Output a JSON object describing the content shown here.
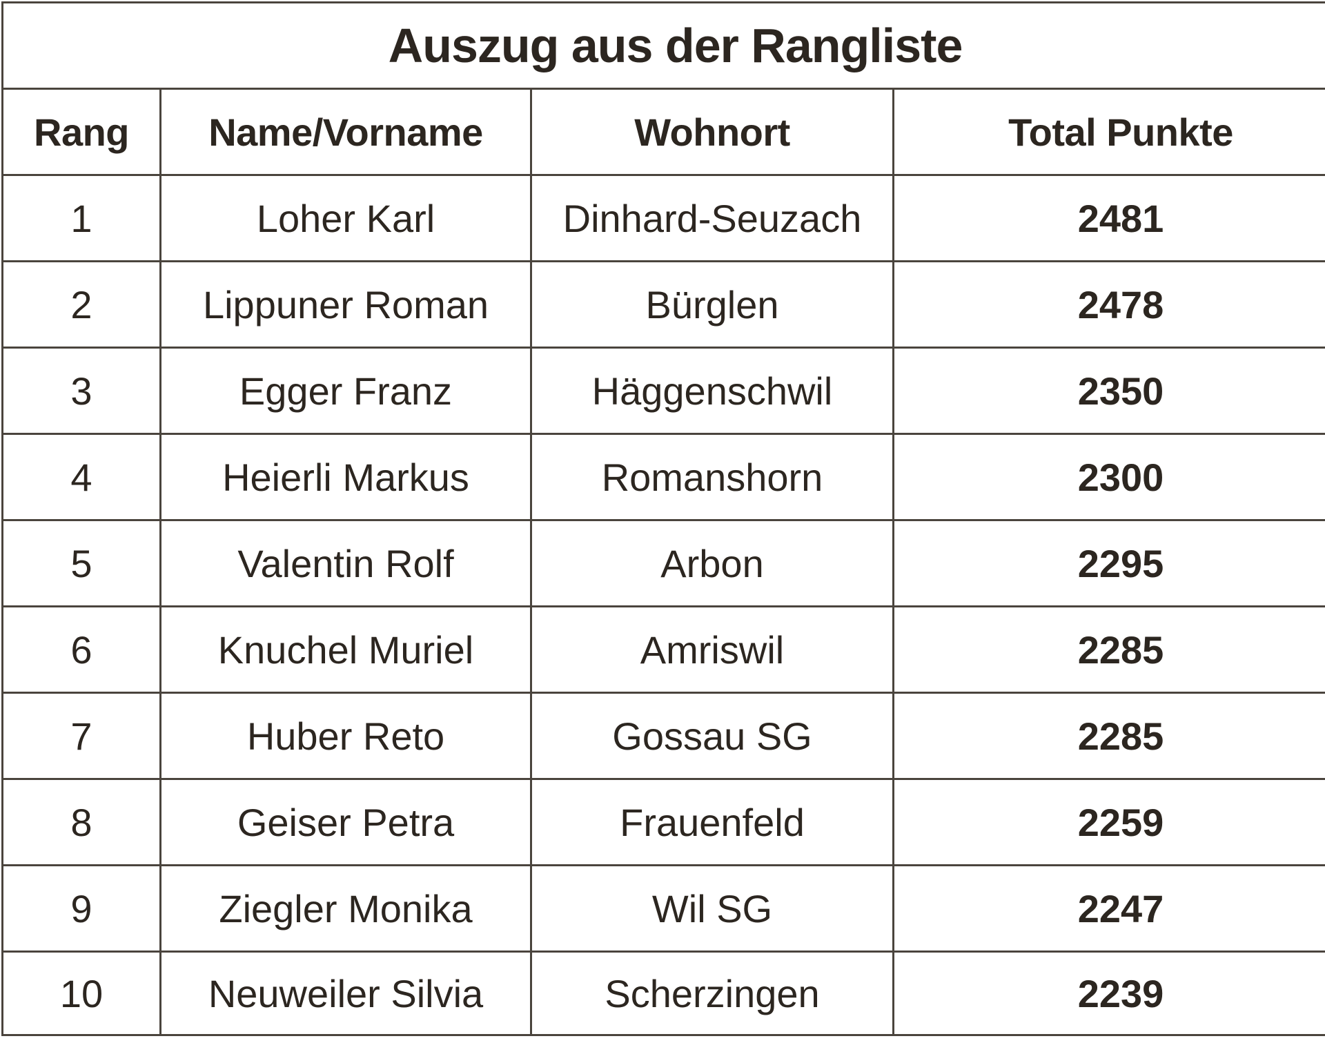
{
  "table": {
    "title": "Auszug aus der Rangliste",
    "columns": [
      "Rang",
      "Name/Vorname",
      "Wohnort",
      "Total Punkte"
    ],
    "rows": [
      {
        "rank": "1",
        "name": "Loher Karl",
        "town": "Dinhard-Seuzach",
        "points": "2481"
      },
      {
        "rank": "2",
        "name": "Lippuner Roman",
        "town": "Bürglen",
        "points": "2478"
      },
      {
        "rank": "3",
        "name": "Egger Franz",
        "town": "Häggenschwil",
        "points": "2350"
      },
      {
        "rank": "4",
        "name": "Heierli Markus",
        "town": "Romanshorn",
        "points": "2300"
      },
      {
        "rank": "5",
        "name": "Valentin Rolf",
        "town": "Arbon",
        "points": "2295"
      },
      {
        "rank": "6",
        "name": "Knuchel Muriel",
        "town": "Amriswil",
        "points": "2285"
      },
      {
        "rank": "7",
        "name": "Huber Reto",
        "town": "Gossau SG",
        "points": "2285"
      },
      {
        "rank": "8",
        "name": "Geiser Petra",
        "town": "Frauenfeld",
        "points": "2259"
      },
      {
        "rank": "9",
        "name": "Ziegler Monika",
        "town": "Wil SG",
        "points": "2247"
      },
      {
        "rank": "10",
        "name": "Neuweiler Silvia",
        "town": "Scherzingen",
        "points": "2239"
      }
    ]
  }
}
